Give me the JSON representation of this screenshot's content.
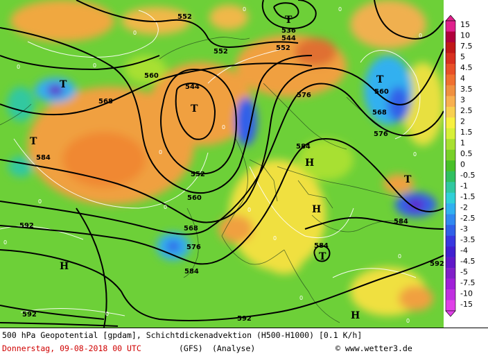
{
  "map": {
    "contour_labels": [
      "552",
      "552",
      "552",
      "544",
      "536",
      "544",
      "560",
      "568",
      "576",
      "584",
      "584",
      "560",
      "568",
      "576",
      "552",
      "592",
      "584",
      "576",
      "568",
      "560",
      "584",
      "584",
      "592",
      "592",
      "592"
    ],
    "pressure_markers": [
      "T",
      "T",
      "T",
      "T",
      "T",
      "T",
      "T",
      "H",
      "H",
      "H",
      "H"
    ],
    "zero_label": "0"
  },
  "colorbar": {
    "labels": [
      "15",
      "10",
      "7.5",
      "5",
      "4.5",
      "4",
      "3.5",
      "3",
      "2.5",
      "2",
      "1.5",
      "1",
      "0.5",
      "0",
      "-0.5",
      "-1",
      "-1.5",
      "-2",
      "-2.5",
      "-3",
      "-3.5",
      "-4",
      "-4.5",
      "-5",
      "-7.5",
      "-10",
      "-15"
    ],
    "colors": [
      "#e0208c",
      "#b0003c",
      "#c01818",
      "#d83020",
      "#e85028",
      "#f07030",
      "#f09040",
      "#f8b050",
      "#f8d050",
      "#f8f040",
      "#d8f038",
      "#a8e030",
      "#78d028",
      "#48c028",
      "#30c060",
      "#30c8a0",
      "#30d0d8",
      "#30b0f0",
      "#3088f0",
      "#3060e8",
      "#3838e0",
      "#4020d0",
      "#6018c8",
      "#8020c8",
      "#a020d8",
      "#c030e0",
      "#e040e8"
    ]
  },
  "caption": {
    "line1": "500 hPa Geopotential [gpdam], Schichtdickenadvektion (H500-H1000) [0.1 K/h]",
    "date": "Donnerstag, 09-08-2018  00 UTC",
    "model": "(GFS)",
    "analysis": "(Analyse)",
    "credit": "© www.wetter3.de"
  }
}
